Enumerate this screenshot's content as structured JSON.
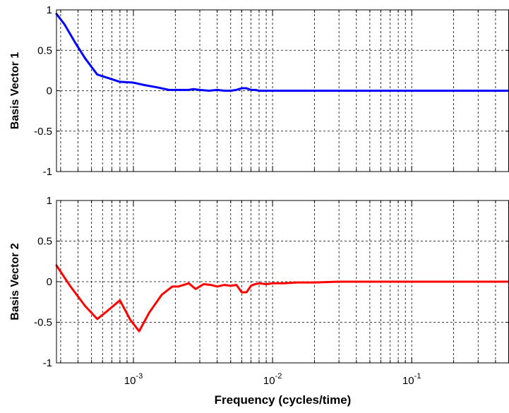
{
  "chart_data": [
    {
      "type": "line",
      "xscale": "log",
      "xlim": [
        0.00028,
        0.5
      ],
      "ylim": [
        -1,
        1
      ],
      "grid": true,
      "ylabel": "Basis Vector  1",
      "xlabel": "",
      "yticks": [
        "1",
        "0.5",
        "0",
        "-0.5",
        "-1"
      ],
      "xticks": [],
      "series": [
        {
          "color": "#0000ff",
          "x": [
            0.00028,
            0.00032,
            0.00038,
            0.00045,
            0.00055,
            0.00065,
            0.0008,
            0.001,
            0.0012,
            0.0015,
            0.0018,
            0.002,
            0.0025,
            0.0027,
            0.003,
            0.0035,
            0.004,
            0.0045,
            0.005,
            0.0055,
            0.006,
            0.0065,
            0.007,
            0.0075,
            0.008,
            0.009,
            0.01,
            0.012,
            0.015,
            0.02,
            0.03,
            0.05,
            0.1,
            0.2,
            0.5
          ],
          "values": [
            0.95,
            0.82,
            0.6,
            0.4,
            0.2,
            0.16,
            0.11,
            0.1,
            0.07,
            0.04,
            0.01,
            0.01,
            0.01,
            0.02,
            0.01,
            0.0,
            0.01,
            0.0,
            0.0,
            0.01,
            0.03,
            0.03,
            0.01,
            0.01,
            0.0,
            0.0,
            0.0,
            0.0,
            0.0,
            0.0,
            0.0,
            0.0,
            0.0,
            0.0,
            0.0
          ]
        }
      ]
    },
    {
      "type": "line",
      "xscale": "log",
      "xlim": [
        0.00028,
        0.5
      ],
      "ylim": [
        -1,
        1
      ],
      "grid": true,
      "ylabel": "Basis Vector  2",
      "xlabel": "Frequency (cycles/time)",
      "yticks": [
        "1",
        "0.5",
        "0",
        "-0.5",
        "-1"
      ],
      "xticks": [
        {
          "value": 0.001,
          "base": "10",
          "exp": "-3"
        },
        {
          "value": 0.01,
          "base": "10",
          "exp": "-2"
        },
        {
          "value": 0.1,
          "base": "10",
          "exp": "-1"
        }
      ],
      "series": [
        {
          "color": "#ff0000",
          "x": [
            0.00028,
            0.00035,
            0.00045,
            0.00055,
            0.00065,
            0.0008,
            0.00095,
            0.0011,
            0.0013,
            0.0016,
            0.0019,
            0.0021,
            0.0025,
            0.0028,
            0.0032,
            0.0036,
            0.004,
            0.0045,
            0.005,
            0.0055,
            0.006,
            0.0065,
            0.007,
            0.0075,
            0.008,
            0.009,
            0.01,
            0.012,
            0.015,
            0.02,
            0.03,
            0.05,
            0.1,
            0.2,
            0.5
          ],
          "values": [
            0.2,
            -0.05,
            -0.3,
            -0.46,
            -0.36,
            -0.23,
            -0.47,
            -0.61,
            -0.38,
            -0.16,
            -0.06,
            -0.06,
            -0.02,
            -0.09,
            -0.03,
            -0.04,
            -0.06,
            -0.04,
            -0.05,
            -0.04,
            -0.13,
            -0.13,
            -0.05,
            -0.03,
            -0.02,
            -0.03,
            -0.02,
            -0.02,
            -0.01,
            -0.01,
            0.0,
            0.0,
            0.0,
            0.0,
            0.0
          ]
        }
      ]
    }
  ]
}
